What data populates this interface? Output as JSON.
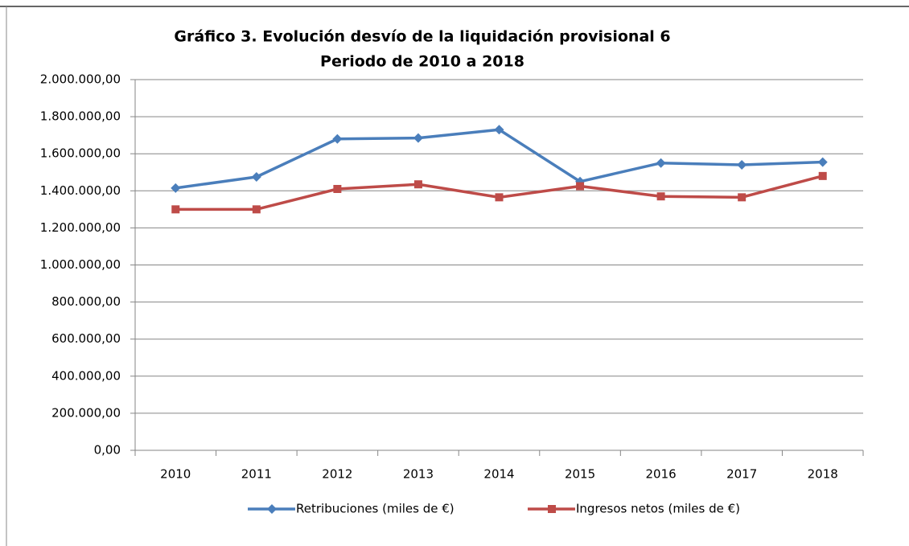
{
  "chart_data": {
    "type": "line",
    "title": "Gráfico 3. Evolución desvío de la liquidación  provisional  6",
    "subtitle": "Periodo de 2010 a 2018",
    "categories": [
      "2010",
      "2011",
      "2012",
      "2013",
      "2014",
      "2015",
      "2016",
      "2017",
      "2018"
    ],
    "series": [
      {
        "name": "Retribuciones (miles de €)",
        "color": "#4a7ebb",
        "marker": "diamond",
        "values": [
          1415000,
          1475000,
          1680000,
          1685000,
          1730000,
          1450000,
          1550000,
          1540000,
          1555000
        ]
      },
      {
        "name": "Ingresos netos (miles de €)",
        "color": "#be4b48",
        "marker": "square",
        "values": [
          1300000,
          1300000,
          1410000,
          1435000,
          1365000,
          1425000,
          1370000,
          1365000,
          1480000
        ]
      }
    ],
    "ylim": [
      0,
      2000000
    ],
    "yticks": [
      {
        "value": 0,
        "label": "0,00"
      },
      {
        "value": 200000,
        "label": "200.000,00"
      },
      {
        "value": 400000,
        "label": "400.000,00"
      },
      {
        "value": 600000,
        "label": "600.000,00"
      },
      {
        "value": 800000,
        "label": "800.000,00"
      },
      {
        "value": 1000000,
        "label": "1.000.000,00"
      },
      {
        "value": 1200000,
        "label": "1.200.000,00"
      },
      {
        "value": 1400000,
        "label": "1.400.000,00"
      },
      {
        "value": 1600000,
        "label": "1.600.000,00"
      },
      {
        "value": 1800000,
        "label": "1.800.000,00"
      },
      {
        "value": 2000000,
        "label": "2.000.000,00"
      }
    ],
    "grid": true,
    "legend": "bottom"
  }
}
